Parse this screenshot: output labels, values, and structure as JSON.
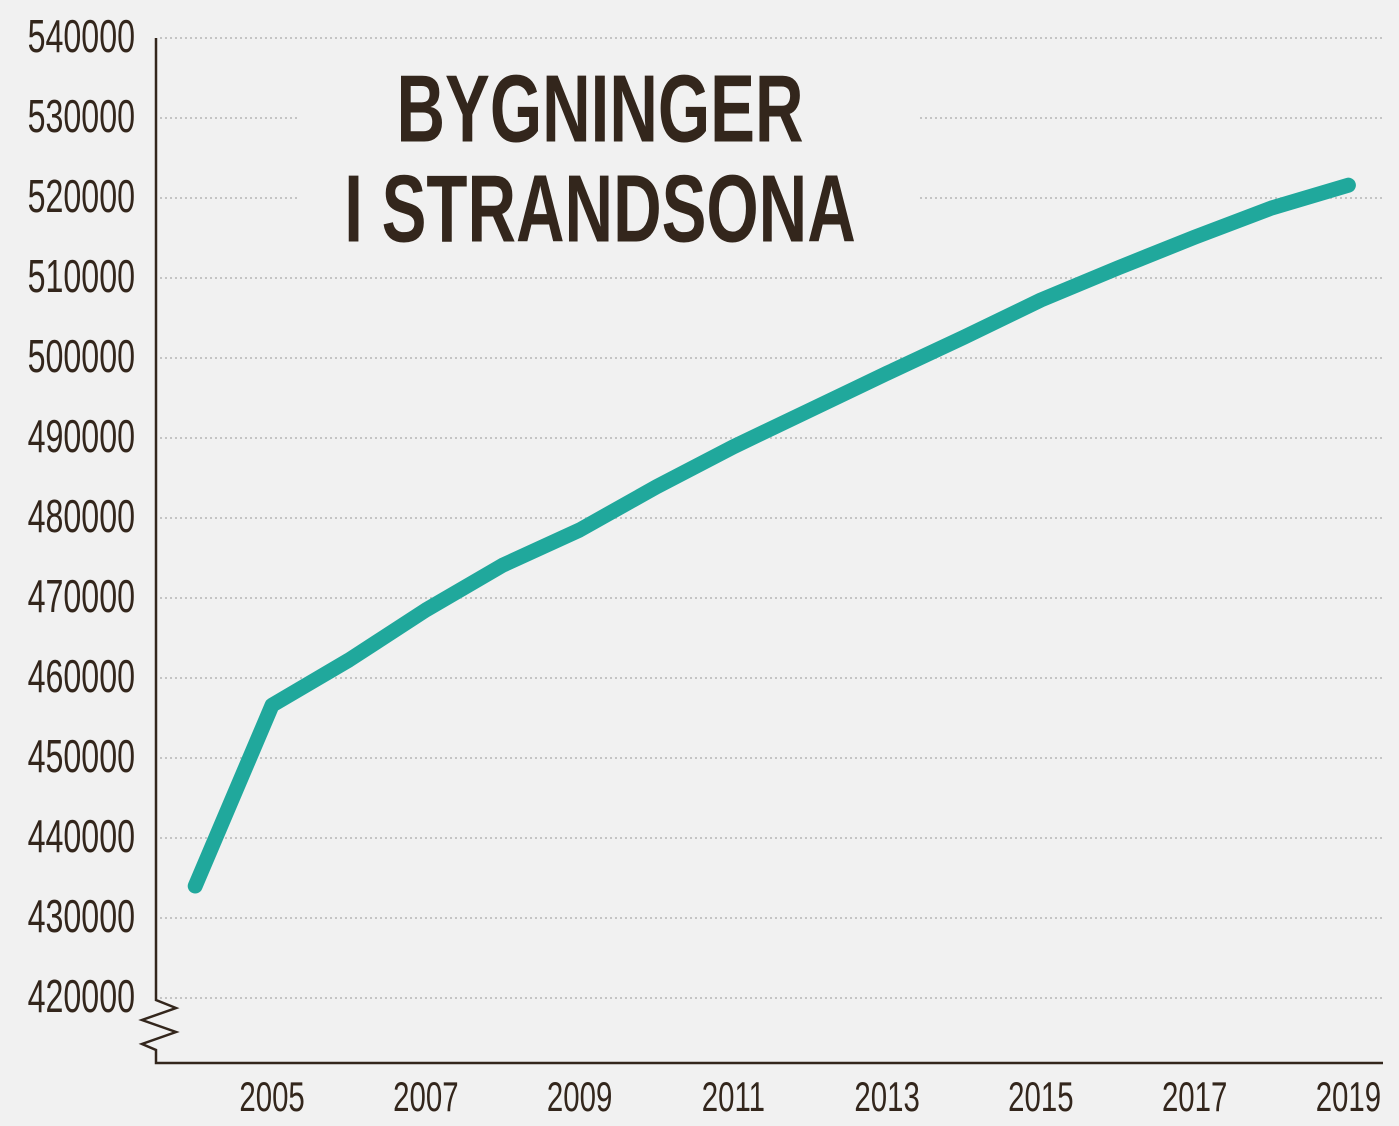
{
  "chart_data": {
    "type": "line",
    "title": [
      "BYGNINGER",
      "I STRANDSONA"
    ],
    "x": [
      2004,
      2005,
      2006,
      2007,
      2008,
      2009,
      2010,
      2011,
      2012,
      2013,
      2014,
      2015,
      2016,
      2017,
      2018,
      2019
    ],
    "series": [
      {
        "color": "#20a89c",
        "values": [
          434000,
          456600,
          462250,
          468500,
          474100,
          478500,
          483900,
          488900,
          493500,
          498100,
          502600,
          507250,
          511250,
          515100,
          518750,
          521600
        ]
      }
    ],
    "xlim": [
      2003.49,
      2019.45
    ],
    "xticks": [
      2005,
      2007,
      2009,
      2011,
      2013,
      2015,
      2017,
      2019
    ],
    "ylim": [
      411875,
      540000
    ],
    "yticks": [
      420000,
      430000,
      440000,
      450000,
      460000,
      470000,
      480000,
      490000,
      500000,
      510000,
      520000,
      530000,
      540000
    ],
    "grid": true
  }
}
